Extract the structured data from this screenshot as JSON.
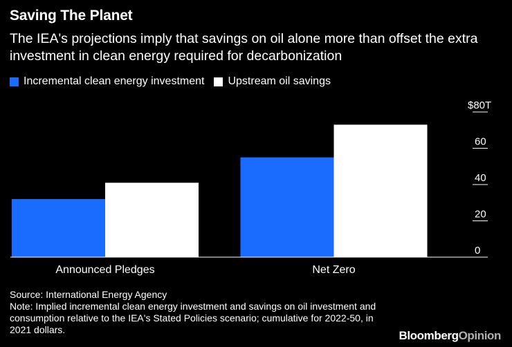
{
  "title": "Saving The Planet",
  "subtitle": "The IEA's projections imply that savings on oil alone more than offset the extra investment in clean energy required for decarbonization",
  "legend": [
    {
      "label": "Incremental clean energy investment",
      "color": "#1a6bff"
    },
    {
      "label": "Upstream oil savings",
      "color": "#ffffff"
    }
  ],
  "chart_data": {
    "type": "bar",
    "categories": [
      "Announced Pledges",
      "Net Zero"
    ],
    "series": [
      {
        "name": "Incremental clean energy investment",
        "color": "#1a6bff",
        "values": [
          32,
          55
        ]
      },
      {
        "name": "Upstream oil savings",
        "color": "#ffffff",
        "values": [
          41,
          73
        ]
      }
    ],
    "y_ticks": [
      0,
      20,
      40,
      60,
      80
    ],
    "y_tick_labels": [
      "0",
      "20",
      "40",
      "60",
      "$80T"
    ],
    "ylim": [
      0,
      80
    ],
    "y_axis_position": "right",
    "grid": false
  },
  "footer": {
    "source": "Source: International Energy Agency",
    "note": "Note: Implied incremental clean energy investment and savings on oil investment and consumption relative to the IEA's Stated Policies scenario; cumulative for 2022-50, in 2021 dollars."
  },
  "brand": {
    "part1": "Bloomberg",
    "part2": "Opinion"
  }
}
